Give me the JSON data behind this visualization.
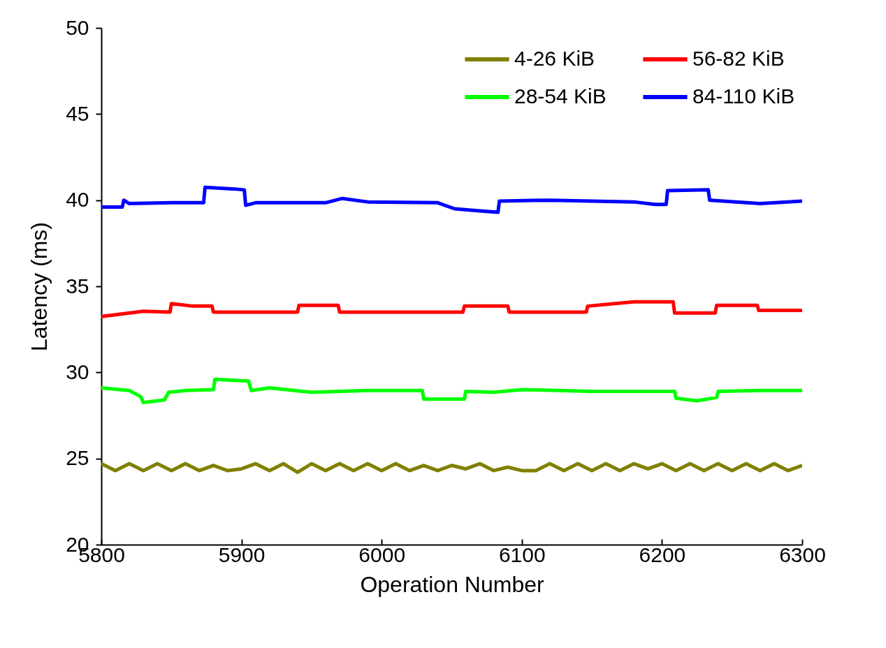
{
  "chart_data": {
    "type": "line",
    "xlabel": "Operation Number",
    "ylabel": "Latency (ms)",
    "xlim": [
      5800,
      6300
    ],
    "ylim": [
      20,
      50
    ],
    "xticks": [
      5800,
      5900,
      6000,
      6100,
      6200,
      6300
    ],
    "yticks": [
      20,
      25,
      30,
      35,
      40,
      45,
      50
    ],
    "grid": false,
    "legend": "top right",
    "line_style": "solid",
    "marker": "none",
    "series": [
      {
        "name": "4-26 KiB",
        "color": "#808000",
        "x": [
          5800,
          5810,
          5820,
          5830,
          5840,
          5850,
          5860,
          5870,
          5880,
          5890,
          5900,
          5910,
          5920,
          5930,
          5940,
          5950,
          5960,
          5970,
          5980,
          5990,
          6000,
          6010,
          6020,
          6030,
          6040,
          6050,
          6060,
          6070,
          6080,
          6090,
          6100,
          6110,
          6120,
          6130,
          6140,
          6150,
          6160,
          6170,
          6180,
          6190,
          6200,
          6210,
          6220,
          6230,
          6240,
          6250,
          6260,
          6270,
          6280,
          6290,
          6300
        ],
        "values": [
          24.7,
          24.3,
          24.7,
          24.3,
          24.7,
          24.3,
          24.7,
          24.3,
          24.6,
          24.3,
          24.4,
          24.7,
          24.3,
          24.7,
          24.2,
          24.7,
          24.3,
          24.7,
          24.3,
          24.7,
          24.3,
          24.7,
          24.3,
          24.6,
          24.3,
          24.6,
          24.4,
          24.7,
          24.3,
          24.5,
          24.3,
          24.3,
          24.7,
          24.3,
          24.7,
          24.3,
          24.7,
          24.3,
          24.7,
          24.4,
          24.7,
          24.3,
          24.7,
          24.3,
          24.7,
          24.3,
          24.7,
          24.3,
          24.7,
          24.3,
          24.6
        ]
      },
      {
        "name": "28-54 KiB",
        "color": "#00ff00",
        "x": [
          5800,
          5820,
          5828,
          5830,
          5845,
          5848,
          5860,
          5880,
          5881,
          5905,
          5907,
          5920,
          5950,
          5990,
          6029,
          6030,
          6059,
          6060,
          6080,
          6100,
          6150,
          6209,
          6210,
          6225,
          6239,
          6240,
          6270,
          6300
        ],
        "values": [
          29.1,
          28.95,
          28.6,
          28.25,
          28.4,
          28.85,
          28.95,
          29.0,
          29.6,
          29.5,
          28.95,
          29.1,
          28.85,
          28.95,
          28.95,
          28.45,
          28.45,
          28.9,
          28.85,
          29.0,
          28.9,
          28.9,
          28.5,
          28.35,
          28.55,
          28.9,
          28.95,
          28.95
        ]
      },
      {
        "name": "56-82 KiB",
        "color": "#ff0000",
        "x": [
          5800,
          5830,
          5849,
          5850,
          5865,
          5879,
          5880,
          5900,
          5940,
          5941,
          5969,
          5970,
          6000,
          6058,
          6059,
          6090,
          6091,
          6146,
          6147,
          6180,
          6208,
          6209,
          6238,
          6239,
          6268,
          6269,
          6300
        ],
        "values": [
          33.25,
          33.55,
          33.5,
          34.0,
          33.85,
          33.85,
          33.5,
          33.5,
          33.5,
          33.9,
          33.9,
          33.5,
          33.5,
          33.5,
          33.85,
          33.85,
          33.5,
          33.5,
          33.85,
          34.1,
          34.1,
          33.45,
          33.45,
          33.9,
          33.9,
          33.6,
          33.6
        ]
      },
      {
        "name": "84-110 KiB",
        "color": "#0000ff",
        "x": [
          5800,
          5815,
          5816,
          5820,
          5850,
          5873,
          5874,
          5895,
          5902,
          5903,
          5910,
          5960,
          5972,
          5990,
          6040,
          6052,
          6067,
          6083,
          6084,
          6120,
          6180,
          6195,
          6203,
          6204,
          6233,
          6234,
          6270,
          6300
        ],
        "values": [
          39.6,
          39.6,
          40.0,
          39.8,
          39.85,
          39.85,
          40.75,
          40.65,
          40.6,
          39.7,
          39.85,
          39.85,
          40.1,
          39.9,
          39.85,
          39.5,
          39.4,
          39.3,
          39.95,
          40.0,
          39.9,
          39.75,
          39.75,
          40.55,
          40.6,
          40.0,
          39.8,
          39.95
        ]
      }
    ]
  }
}
